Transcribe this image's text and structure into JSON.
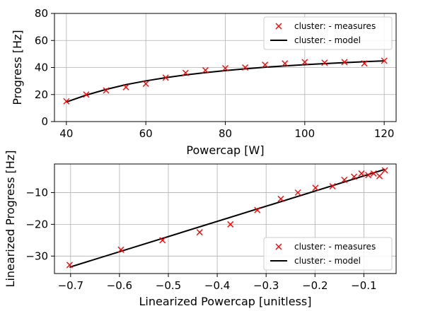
{
  "chart_data": [
    {
      "type": "scatter",
      "title": "",
      "xlabel": "Powercap [W]",
      "ylabel": "Progress [Hz]",
      "xlim": [
        37,
        123
      ],
      "ylim": [
        0,
        80
      ],
      "xticks": [
        40,
        60,
        80,
        100,
        120
      ],
      "yticks": [
        0,
        20,
        40,
        60,
        80
      ],
      "grid": true,
      "legend": "top-right",
      "series": [
        {
          "name": "cluster:  - measures",
          "kind": "markers",
          "marker": "x",
          "color": "#ff0000",
          "x": [
            40,
            45,
            50,
            55,
            60,
            65,
            70,
            75,
            80,
            85,
            90,
            95,
            100,
            105,
            110,
            115,
            120
          ],
          "y": [
            15,
            20,
            23,
            25.5,
            28,
            32.5,
            36,
            38,
            39.5,
            40,
            42,
            43,
            44,
            43.5,
            44,
            43,
            45
          ]
        },
        {
          "name": "cluster:  - model",
          "kind": "line",
          "color": "#000000",
          "x": [
            40,
            45,
            50,
            55,
            60,
            65,
            70,
            75,
            80,
            85,
            90,
            95,
            100,
            105,
            110,
            115,
            120
          ],
          "y": [
            14.5,
            19.6,
            23.8,
            27.3,
            30.1,
            32.5,
            34.5,
            36.2,
            37.7,
            39.0,
            40.2,
            41.2,
            42.1,
            42.9,
            43.6,
            44.3,
            44.9
          ]
        }
      ]
    },
    {
      "type": "scatter",
      "title": "",
      "xlabel": "Linearized Powercap [unitless]",
      "ylabel": "Linearized Progress [Hz]",
      "xlim": [
        -0.733,
        -0.034
      ],
      "ylim": [
        -35.5,
        -1.0
      ],
      "xticks": [
        -0.7,
        -0.6,
        -0.5,
        -0.4,
        -0.3,
        -0.2,
        -0.1
      ],
      "yticks": [
        -30,
        -20,
        -10
      ],
      "xtick_labels": [
        "−0.7",
        "−0.6",
        "−0.5",
        "−0.4",
        "−0.3",
        "−0.2",
        "−0.1"
      ],
      "ytick_labels": [
        "−30",
        "−20",
        "−10"
      ],
      "grid": true,
      "legend": "bottom-right",
      "series": [
        {
          "name": "cluster:  - measures",
          "kind": "markers",
          "marker": "x",
          "color": "#ff0000",
          "x": [
            -0.702,
            -0.597,
            -0.512,
            -0.436,
            -0.373,
            -0.318,
            -0.27,
            -0.235,
            -0.199,
            -0.164,
            -0.14,
            -0.12,
            -0.105,
            -0.091,
            -0.08,
            -0.068,
            -0.057
          ],
          "y": [
            -32.8,
            -28.0,
            -25.0,
            -22.5,
            -20.0,
            -15.5,
            -12.0,
            -10.0,
            -8.5,
            -8.0,
            -6.0,
            -5.0,
            -4.0,
            -4.5,
            -4.0,
            -4.8,
            -3.0
          ]
        },
        {
          "name": "cluster:  - model",
          "kind": "line",
          "color": "#000000",
          "x": [
            -0.702,
            -0.057
          ],
          "y": [
            -33.5,
            -2.7
          ]
        }
      ]
    }
  ]
}
